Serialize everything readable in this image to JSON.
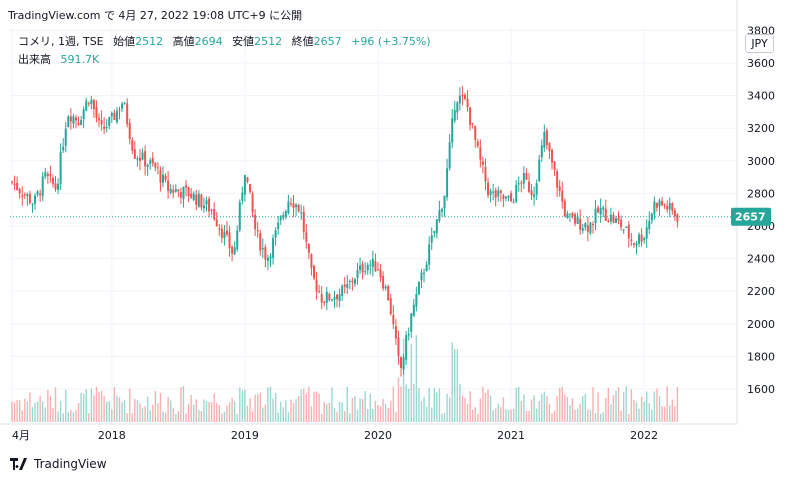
{
  "header": {
    "text": "TradingView.com で 4月 27, 2022 19:08 UTC+9 に公開"
  },
  "legend": {
    "symbol": "コメリ, 1週, TSE",
    "open_label": "始値",
    "open": "2512",
    "high_label": "高値",
    "high": "2694",
    "low_label": "安値",
    "low": "2512",
    "close_label": "終値",
    "close": "2657",
    "change": "+96 (+3.75%)",
    "volume_label": "出来高",
    "volume": "591.7K"
  },
  "currency": "JPY",
  "footer": {
    "brand": "TradingView"
  },
  "colors": {
    "up": "#26a69a",
    "down": "#ef5350",
    "grid": "#f0f3fa",
    "last_price": "#26a69a"
  },
  "chart_data": {
    "type": "candlestick",
    "ylim": [
      1500,
      3800
    ],
    "y_ticks": [
      "1600",
      "1800",
      "2000",
      "2200",
      "2400",
      "2600",
      "2800",
      "3000",
      "3200",
      "3400",
      "3600",
      "3800"
    ],
    "x_ticks": [
      {
        "label": "4月",
        "t": 2017.25
      },
      {
        "label": "2018",
        "t": 2018.0
      },
      {
        "label": "2019",
        "t": 2019.0
      },
      {
        "label": "2020",
        "t": 2020.0
      },
      {
        "label": "2021",
        "t": 2021.0
      },
      {
        "label": "2022",
        "t": 2022.0
      }
    ],
    "x_range": [
      2017.25,
      2022.6
    ],
    "last_price": 2657,
    "price_path": [
      [
        "2017-04",
        2870
      ],
      [
        "2017-06",
        2740
      ],
      [
        "2017-07",
        2900
      ],
      [
        "2017-08",
        2830
      ],
      [
        "2017-09",
        3300
      ],
      [
        "2017-10",
        3250
      ],
      [
        "2017-11",
        3400
      ],
      [
        "2017-12",
        3180
      ],
      [
        "2018-01",
        3250
      ],
      [
        "2018-02",
        3370
      ],
      [
        "2018-03",
        3050
      ],
      [
        "2018-05",
        2950
      ],
      [
        "2018-06",
        2830
      ],
      [
        "2018-08",
        2800
      ],
      [
        "2018-10",
        2700
      ],
      [
        "2018-12",
        2420
      ],
      [
        "2019-01",
        2950
      ],
      [
        "2019-02",
        2550
      ],
      [
        "2019-03",
        2400
      ],
      [
        "2019-05",
        2780
      ],
      [
        "2019-06",
        2700
      ],
      [
        "2019-07",
        2300
      ],
      [
        "2019-08",
        2150
      ],
      [
        "2019-10",
        2200
      ],
      [
        "2019-11",
        2300
      ],
      [
        "2019-12",
        2370
      ],
      [
        "2020-01",
        2350
      ],
      [
        "2020-02",
        2150
      ],
      [
        "2020-03",
        1700
      ],
      [
        "2020-04",
        2050
      ],
      [
        "2020-06",
        2550
      ],
      [
        "2020-07",
        2800
      ],
      [
        "2020-08",
        3400
      ],
      [
        "2020-09",
        3350
      ],
      [
        "2020-10",
        3050
      ],
      [
        "2020-11",
        2800
      ],
      [
        "2021-01",
        2750
      ],
      [
        "2021-02",
        2900
      ],
      [
        "2021-03",
        2800
      ],
      [
        "2021-04",
        3150
      ],
      [
        "2021-05",
        2900
      ],
      [
        "2021-06",
        2650
      ],
      [
        "2021-08",
        2600
      ],
      [
        "2021-09",
        2700
      ],
      [
        "2021-11",
        2600
      ],
      [
        "2021-12",
        2500
      ],
      [
        "2022-01",
        2550
      ],
      [
        "2022-02",
        2750
      ],
      [
        "2022-03",
        2720
      ],
      [
        "2022-04",
        2657
      ]
    ]
  }
}
